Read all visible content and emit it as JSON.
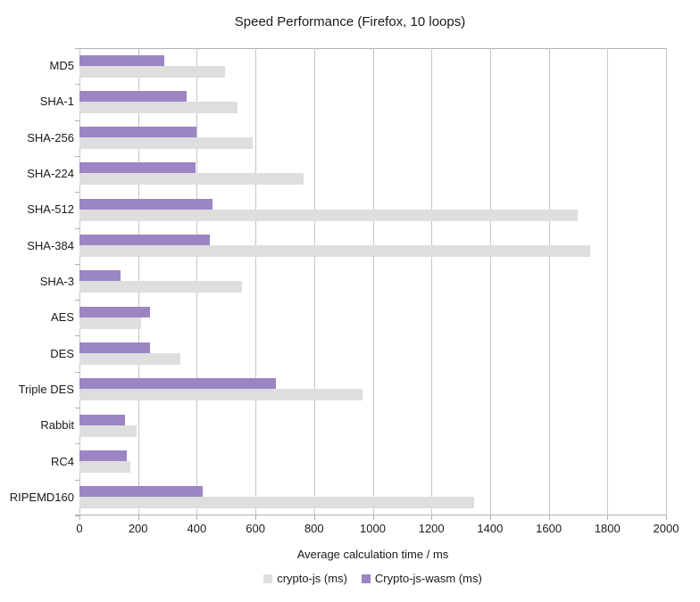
{
  "chart_data": {
    "type": "bar",
    "orientation": "horizontal",
    "title": "Speed Performance (Firefox, 10 loops)",
    "xlabel": "Average calculation time / ms",
    "ylabel": "",
    "categories": [
      "MD5",
      "SHA-1",
      "SHA-256",
      "SHA-224",
      "SHA-512",
      "SHA-384",
      "SHA-3",
      "AES",
      "DES",
      "Triple DES",
      "Rabbit",
      "RC4",
      "RIPEMD160"
    ],
    "series": [
      {
        "name": "crypto-js (ms)",
        "color": "#dedede",
        "values": [
          495,
          540,
          590,
          765,
          1700,
          1740,
          555,
          210,
          345,
          965,
          195,
          175,
          1345
        ]
      },
      {
        "name": "Crypto-js-wasm (ms)",
        "color": "#9b85c2",
        "values": [
          290,
          365,
          400,
          395,
          455,
          445,
          140,
          240,
          240,
          670,
          155,
          160,
          420
        ]
      }
    ],
    "xlim": [
      0,
      2000
    ],
    "xticks": [
      0,
      200,
      400,
      600,
      800,
      1000,
      1200,
      1400,
      1600,
      1800,
      2000
    ],
    "grid": "vertical-only",
    "legend_position": "bottom"
  },
  "colors": {
    "background": "#ffffff",
    "gridline": "#c6c6c6",
    "axis": "#b0b0b0",
    "text": "#1a1a1a"
  }
}
